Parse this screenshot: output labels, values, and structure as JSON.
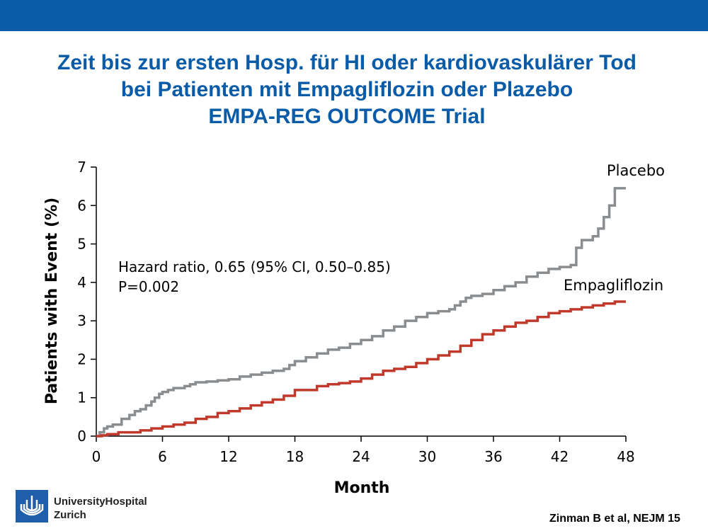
{
  "colors": {
    "top_bar": "#0a5ca8",
    "title": "#0a5ca8",
    "placebo": "#8a8d90",
    "empagliflozin": "#c0392b",
    "logo": "#1f5ea8"
  },
  "slide": {
    "title_lines": [
      "Zeit bis zur ersten Hosp. für HI oder kardiovaskulärer Tod",
      "bei Patienten mit Empagliflozin oder Plazebo",
      "EMPA-REG OUTCOME Trial"
    ],
    "logo_icon": "university-hospital-logo-icon",
    "logo_lines": [
      "UniversityHospital",
      "Zurich"
    ],
    "citation": "Zinman B et al, NEJM 15"
  },
  "chart_data": {
    "type": "line",
    "title": "",
    "xlabel": "Month",
    "ylabel": "Patients with Event (%)",
    "xlim": [
      0,
      48
    ],
    "ylim": [
      0,
      7
    ],
    "xticks": [
      0,
      6,
      12,
      18,
      24,
      30,
      36,
      42,
      48
    ],
    "yticks": [
      0,
      1,
      2,
      3,
      4,
      5,
      6,
      7
    ],
    "grid": false,
    "annotations": [
      "Hazard ratio, 0.65 (95% CI, 0.50–0.85)",
      "P=0.002"
    ],
    "series": [
      {
        "name": "Placebo",
        "style": "step",
        "x": [
          0,
          0.3,
          0.7,
          1.0,
          1.5,
          2.3,
          3.0,
          3.5,
          4.0,
          4.5,
          5.0,
          5.3,
          5.7,
          6.0,
          6.5,
          7.0,
          8.0,
          8.5,
          9.0,
          10.0,
          11.0,
          12.0,
          13.0,
          14.0,
          15.0,
          16.0,
          17.0,
          17.5,
          18.0,
          19.0,
          20.0,
          21.0,
          22.0,
          23.0,
          24.0,
          25.0,
          26.0,
          27.0,
          28.0,
          29.0,
          30.0,
          31.0,
          32.0,
          32.5,
          33.0,
          33.5,
          34.0,
          35.0,
          36.0,
          37.0,
          38.0,
          39.0,
          40.0,
          41.0,
          42.0,
          43.0,
          43.5,
          44.0,
          45.0,
          45.5,
          46.0,
          46.5,
          47.0,
          48.0
        ],
        "y": [
          0,
          0.1,
          0.2,
          0.25,
          0.3,
          0.45,
          0.55,
          0.65,
          0.7,
          0.8,
          0.9,
          1.0,
          1.1,
          1.15,
          1.2,
          1.25,
          1.3,
          1.35,
          1.4,
          1.42,
          1.45,
          1.48,
          1.55,
          1.6,
          1.65,
          1.7,
          1.75,
          1.85,
          1.95,
          2.05,
          2.15,
          2.25,
          2.3,
          2.4,
          2.5,
          2.6,
          2.75,
          2.85,
          3.0,
          3.1,
          3.2,
          3.25,
          3.3,
          3.4,
          3.5,
          3.6,
          3.65,
          3.7,
          3.8,
          3.9,
          4.0,
          4.15,
          4.25,
          4.35,
          4.4,
          4.45,
          4.9,
          5.1,
          5.2,
          5.4,
          5.7,
          6.0,
          6.45,
          6.45
        ]
      },
      {
        "name": "Empagliflozin",
        "style": "step",
        "x": [
          0,
          0.5,
          1.0,
          2.0,
          4.0,
          5.0,
          6.0,
          7.0,
          8.0,
          9.0,
          10.0,
          11.0,
          12.0,
          13.0,
          14.0,
          15.0,
          16.0,
          17.0,
          18.0,
          20.0,
          21.0,
          22.0,
          23.0,
          24.0,
          25.0,
          26.0,
          27.0,
          28.0,
          29.0,
          30.0,
          31.0,
          32.0,
          33.0,
          34.0,
          35.0,
          36.0,
          37.0,
          38.0,
          39.0,
          40.0,
          41.0,
          42.0,
          43.0,
          44.0,
          45.0,
          46.0,
          47.0,
          48.0
        ],
        "y": [
          0,
          0.02,
          0.05,
          0.1,
          0.15,
          0.2,
          0.25,
          0.3,
          0.35,
          0.45,
          0.5,
          0.6,
          0.65,
          0.72,
          0.8,
          0.88,
          0.95,
          1.05,
          1.2,
          1.3,
          1.35,
          1.38,
          1.42,
          1.5,
          1.6,
          1.7,
          1.75,
          1.8,
          1.9,
          2.0,
          2.1,
          2.2,
          2.35,
          2.5,
          2.65,
          2.75,
          2.85,
          2.95,
          3.0,
          3.1,
          3.2,
          3.25,
          3.3,
          3.35,
          3.4,
          3.45,
          3.5,
          3.5
        ]
      }
    ]
  }
}
